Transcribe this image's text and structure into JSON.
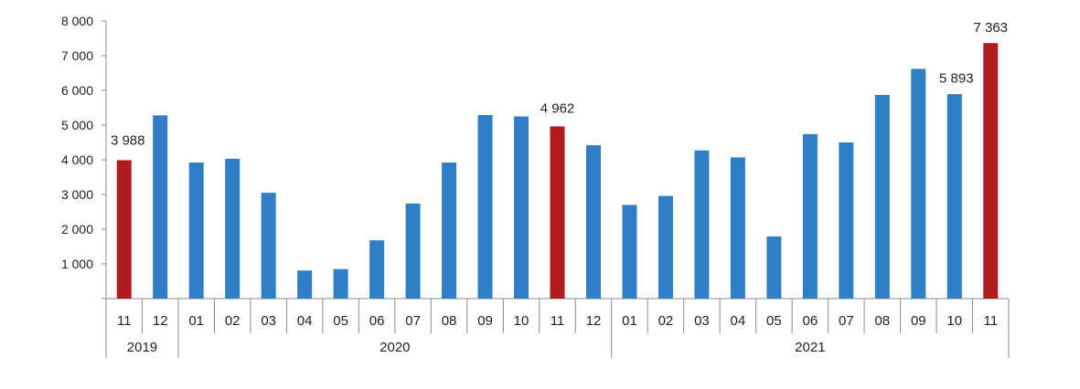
{
  "chart_data": {
    "type": "bar",
    "title": "",
    "xlabel": "",
    "ylabel": "",
    "ylim": [
      0,
      8000
    ],
    "y_ticks": [
      "",
      "1 000",
      "2 000",
      "3 000",
      "4 000",
      "5 000",
      "6 000",
      "7 000",
      "8 000"
    ],
    "y_tick_values": [
      0,
      1000,
      2000,
      3000,
      4000,
      5000,
      6000,
      7000,
      8000
    ],
    "grid": false,
    "legend": "none",
    "categories": [
      "11",
      "12",
      "01",
      "02",
      "03",
      "04",
      "05",
      "06",
      "07",
      "08",
      "09",
      "10",
      "11",
      "12",
      "01",
      "02",
      "03",
      "04",
      "05",
      "06",
      "07",
      "08",
      "09",
      "10",
      "11"
    ],
    "years": [
      {
        "label": "2019",
        "count": 2
      },
      {
        "label": "2020",
        "count": 12
      },
      {
        "label": "2021",
        "count": 11
      }
    ],
    "values": [
      3988,
      5280,
      3920,
      4030,
      3050,
      810,
      850,
      1680,
      2740,
      3920,
      5290,
      5250,
      4962,
      4420,
      2700,
      2960,
      4270,
      4070,
      1790,
      4740,
      4500,
      5870,
      6620,
      5893,
      7363
    ],
    "highlight": [
      true,
      false,
      false,
      false,
      false,
      false,
      false,
      false,
      false,
      false,
      false,
      false,
      true,
      false,
      false,
      false,
      false,
      false,
      false,
      false,
      false,
      false,
      false,
      false,
      true
    ],
    "data_labels": [
      {
        "index": 0,
        "text": "3 988"
      },
      {
        "index": 12,
        "text": "4 962"
      },
      {
        "index": 23,
        "text": "5 893"
      },
      {
        "index": 24,
        "text": "7 363"
      }
    ],
    "colors": {
      "bar": "#2e7fc5",
      "highlight": "#b01c1e",
      "axis": "#8a8a8a"
    }
  }
}
